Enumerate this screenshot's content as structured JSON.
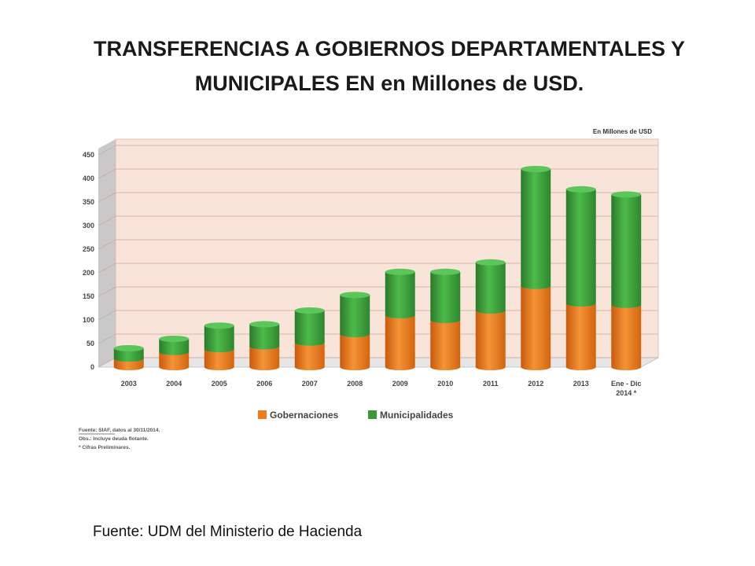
{
  "slide": {
    "title": "TRANSFERENCIAS A GOBIERNOS DEPARTAMENTALES Y MUNICIPALES EN en Millones de USD.",
    "footnote": "Fuente: UDM del Ministerio de Hacienda"
  },
  "colors": {
    "gobernaciones": "#ee7b1e",
    "municipalidades": "#3a9a3a",
    "plot_bg": "#f8e4d8",
    "wall": "#c9c9c9"
  },
  "chart_data": {
    "type": "bar",
    "stacked": true,
    "unit_label": "En Millones de USD",
    "categories": [
      "2003",
      "2004",
      "2005",
      "2006",
      "2007",
      "2008",
      "2009",
      "2010",
      "2011",
      "2012",
      "2013",
      "Ene - Dic 2014 *"
    ],
    "series": [
      {
        "name": "Gobernaciones",
        "values": [
          18,
          32,
          38,
          44,
          52,
          70,
          110,
          100,
          120,
          172,
          135,
          132
        ]
      },
      {
        "name": "Municipalidades",
        "values": [
          22,
          28,
          50,
          47,
          68,
          83,
          92,
          102,
          102,
          248,
          242,
          234
        ]
      }
    ],
    "ylim": [
      0,
      450
    ],
    "yticks": [
      0,
      50,
      100,
      150,
      200,
      250,
      300,
      350,
      400,
      450
    ],
    "grid": true,
    "legend_position": "bottom",
    "source_notes": [
      "Fuente: SIAF, datos al 30/11/2014.",
      "Obs.: Incluye deuda flotante.",
      "* Cifras Preliminares."
    ]
  }
}
